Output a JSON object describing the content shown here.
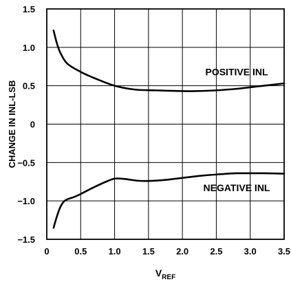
{
  "chart_data": {
    "type": "line",
    "title": "",
    "xlabel": "V",
    "xlabel_sub": "REF",
    "ylabel": "CHANGE IN INL-LSB",
    "xlim": [
      0,
      3.5
    ],
    "ylim": [
      -1.5,
      1.5
    ],
    "grid": true,
    "legend": "none",
    "xticks": [
      0,
      0.5,
      1.0,
      1.5,
      2.0,
      2.5,
      3.0,
      3.5
    ],
    "xtick_labels": [
      "0",
      "0.5",
      "1.0",
      "1.5",
      "2.0",
      "2.5",
      "3.0",
      "3.5"
    ],
    "yticks": [
      -1.5,
      -1.0,
      -0.5,
      0,
      0.5,
      1.0,
      1.5
    ],
    "ytick_labels": [
      "−1.5",
      "−1.0",
      "−0.5",
      "0",
      "0.5",
      "1.0",
      "1.5"
    ],
    "series": [
      {
        "name": "POSITIVE INL",
        "x": [
          0.1,
          0.15,
          0.2,
          0.3,
          0.5,
          0.7,
          1.0,
          1.3,
          1.6,
          2.0,
          2.2,
          2.5,
          2.8,
          3.0,
          3.3,
          3.5
        ],
        "y": [
          1.22,
          1.05,
          0.93,
          0.79,
          0.68,
          0.6,
          0.5,
          0.45,
          0.44,
          0.43,
          0.43,
          0.44,
          0.46,
          0.48,
          0.51,
          0.53
        ]
      },
      {
        "name": "NEGATIVE INL",
        "x": [
          0.1,
          0.15,
          0.2,
          0.25,
          0.3,
          0.4,
          0.5,
          0.7,
          0.9,
          1.0,
          1.1,
          1.2,
          1.4,
          1.7,
          2.0,
          2.3,
          2.6,
          2.8,
          3.0,
          3.2,
          3.5
        ],
        "y": [
          -1.35,
          -1.2,
          -1.08,
          -1.01,
          -0.98,
          -0.95,
          -0.91,
          -0.82,
          -0.74,
          -0.71,
          -0.71,
          -0.72,
          -0.74,
          -0.73,
          -0.7,
          -0.67,
          -0.65,
          -0.64,
          -0.64,
          -0.64,
          -0.645
        ]
      }
    ],
    "annotations": [
      {
        "text": "POSITIVE INL",
        "x": 2.8,
        "y": 0.68,
        "series": 0
      },
      {
        "text": "NEGATIVE INL",
        "x": 2.8,
        "y": -0.83,
        "series": 1
      }
    ],
    "colors": {
      "line": "#000000",
      "grid": "#000000",
      "background": "#ffffff"
    }
  }
}
